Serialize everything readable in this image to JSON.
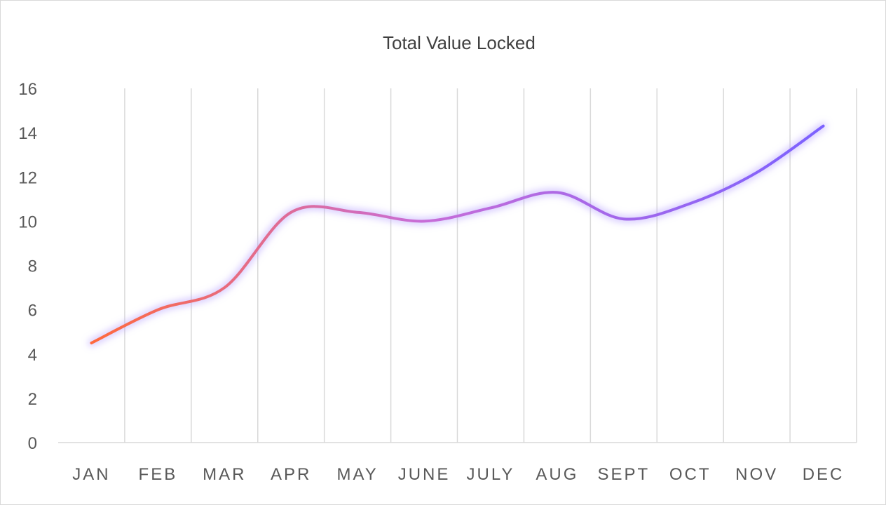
{
  "chart_data": {
    "type": "line",
    "title": "",
    "xlabel": "",
    "ylabel": "",
    "categories": [
      "JAN",
      "FEB",
      "MAR",
      "APR",
      "MAY",
      "JUNE",
      "JULY",
      "AUG",
      "SEPT",
      "OCT",
      "NOV",
      "DEC"
    ],
    "series": [
      {
        "name": "Total Value Locked",
        "values": [
          4.5,
          6.0,
          7.0,
          10.4,
          10.4,
          10.0,
          10.6,
          11.3,
          10.1,
          10.8,
          12.2,
          14.3
        ]
      }
    ],
    "ylim": [
      0,
      16
    ],
    "yticks": [
      0,
      2,
      4,
      6,
      8,
      10,
      12,
      14,
      16
    ],
    "grid": "vertical",
    "legend": "top",
    "colors": {
      "gradient_start": "#ff6a3d",
      "gradient_mid": "#c86dd7",
      "gradient_end": "#7b61ff",
      "glow": "#b39cff",
      "gridline": "#d9d9d9",
      "tick_text": "#595959"
    }
  }
}
